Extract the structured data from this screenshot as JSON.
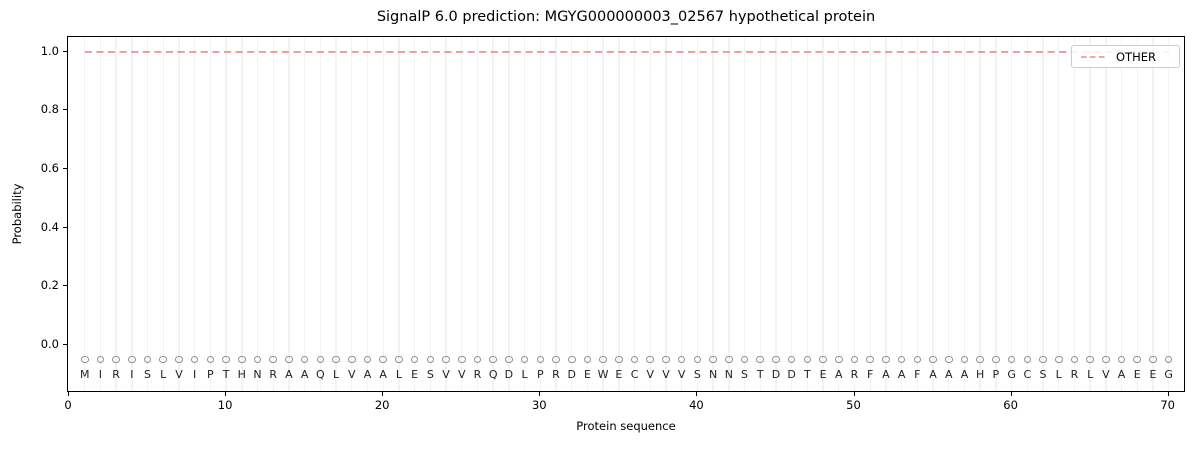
{
  "figure": {
    "title": "SignalP 6.0 prediction: MGYG000000003_02567 hypothetical protein",
    "xlabel": "Protein sequence",
    "ylabel": "Probability",
    "legend": {
      "label": "OTHER"
    }
  },
  "axes": {
    "x_tick_labels": [
      "0",
      "10",
      "20",
      "30",
      "40",
      "50",
      "60",
      "70"
    ],
    "x_tick_values": [
      0,
      10,
      20,
      30,
      40,
      50,
      60,
      70
    ],
    "y_tick_labels": [
      "0.0",
      "0.2",
      "0.4",
      "0.6",
      "0.8",
      "1.0"
    ],
    "y_tick_values": [
      0.0,
      0.2,
      0.4,
      0.6,
      0.8,
      1.0
    ]
  },
  "sequence": "MIRISLVIPTHNRAAQLVAALESVVRQDLPRDEWECVVVSNNSTDDTEARFAAFAAAHPGCSLRLVAEEG",
  "colors": {
    "other_line": "#ee8888",
    "gridline": "#f2f2f2",
    "marker_ring": "#909090",
    "letter": "#1f1f1f",
    "axis": "#000000",
    "legend_border": "#cccccc"
  },
  "chart_data": {
    "type": "line",
    "title": "SignalP 6.0 prediction: MGYG000000003_02567 hypothetical protein",
    "xlabel": "Protein sequence",
    "ylabel": "Probability",
    "xlim": [
      0,
      71
    ],
    "ylim": [
      -0.16,
      1.05
    ],
    "grid": "vertical gridline at every residue position",
    "legend_position": "upper right",
    "x": [
      1,
      2,
      3,
      4,
      5,
      6,
      7,
      8,
      9,
      10,
      11,
      12,
      13,
      14,
      15,
      16,
      17,
      18,
      19,
      20,
      21,
      22,
      23,
      24,
      25,
      26,
      27,
      28,
      29,
      30,
      31,
      32,
      33,
      34,
      35,
      36,
      37,
      38,
      39,
      40,
      41,
      42,
      43,
      44,
      45,
      46,
      47,
      48,
      49,
      50,
      51,
      52,
      53,
      54,
      55,
      56,
      57,
      58,
      59,
      60,
      61,
      62,
      63,
      64,
      65,
      66,
      67,
      68,
      69,
      70
    ],
    "series": [
      {
        "name": "OTHER",
        "style": "dashed",
        "color": "#ee8888",
        "values": [
          1.0,
          1.0,
          1.0,
          1.0,
          1.0,
          1.0,
          1.0,
          1.0,
          1.0,
          1.0,
          1.0,
          1.0,
          1.0,
          1.0,
          1.0,
          1.0,
          1.0,
          1.0,
          1.0,
          1.0,
          1.0,
          1.0,
          1.0,
          1.0,
          1.0,
          1.0,
          1.0,
          1.0,
          1.0,
          1.0,
          1.0,
          1.0,
          1.0,
          1.0,
          1.0,
          1.0,
          1.0,
          1.0,
          1.0,
          1.0,
          1.0,
          1.0,
          1.0,
          1.0,
          1.0,
          1.0,
          1.0,
          1.0,
          1.0,
          1.0,
          1.0,
          1.0,
          1.0,
          1.0,
          1.0,
          1.0,
          1.0,
          1.0,
          1.0,
          1.0,
          1.0,
          1.0,
          1.0,
          1.0,
          1.0,
          1.0,
          1.0,
          1.0,
          1.0,
          1.0
        ]
      }
    ],
    "residue_letters": "MIRISLVIPTHNRAAQLVAALESVVRQDLPRDEWECVVVSNNSTDDTEARFAAFAAAHPGCSLRLVAEEG",
    "residue_marker": {
      "shape": "open-circle",
      "y": -0.05
    },
    "residue_letter_y": -0.105
  }
}
